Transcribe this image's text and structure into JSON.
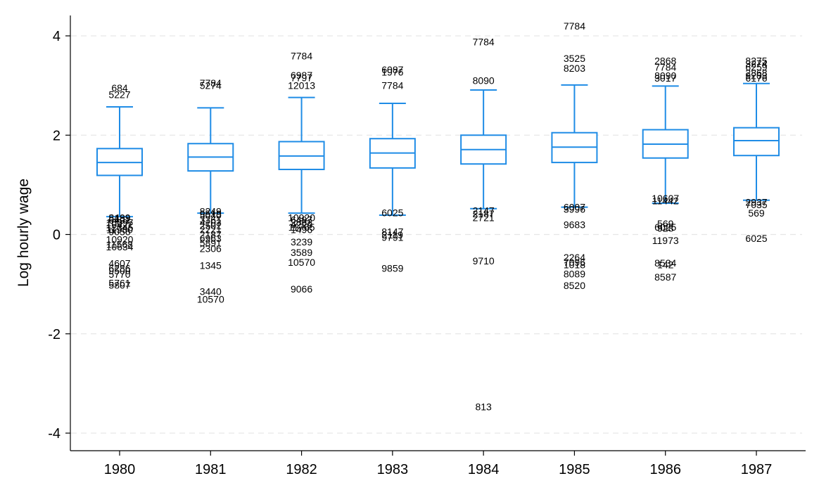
{
  "chart_data": {
    "type": "box",
    "title": "",
    "xlabel": "",
    "ylabel": "Log hourly wage",
    "ylim": [
      -4.5,
      4.5
    ],
    "yticks": [
      {
        "value": 4,
        "label": "4"
      },
      {
        "value": 2,
        "label": "2"
      },
      {
        "value": 0,
        "label": "0"
      },
      {
        "value": -2,
        "label": "-2"
      },
      {
        "value": -4,
        "label": "-4"
      }
    ],
    "grid": true,
    "colors": {
      "box": "#1f8ce6",
      "grid": "#e6e6e6",
      "axis": "#000000"
    },
    "categories": [
      "1980",
      "1981",
      "1982",
      "1983",
      "1984",
      "1985",
      "1986",
      "1987"
    ],
    "boxes": [
      {
        "year": "1980",
        "whisker_low": 0.36,
        "q1": 1.19,
        "median": 1.45,
        "q3": 1.73,
        "whisker_high": 2.57,
        "outliers": [
          {
            "value": 2.95,
            "label": "684"
          },
          {
            "value": 2.82,
            "label": "5227"
          },
          {
            "value": 0.34,
            "label": "8499"
          },
          {
            "value": 0.33,
            "label": "5189"
          },
          {
            "value": 0.29,
            "label": "6401"
          },
          {
            "value": 0.24,
            "label": "10097"
          },
          {
            "value": 0.2,
            "label": "10422"
          },
          {
            "value": 0.14,
            "label": "12345"
          },
          {
            "value": 0.1,
            "label": "11580"
          },
          {
            "value": 0.06,
            "label": "9056"
          },
          {
            "value": -0.1,
            "label": "10920"
          },
          {
            "value": -0.2,
            "label": "11568"
          },
          {
            "value": -0.25,
            "label": "10634"
          },
          {
            "value": -0.58,
            "label": "4607"
          },
          {
            "value": -0.68,
            "label": "6286"
          },
          {
            "value": -0.73,
            "label": "9500"
          },
          {
            "value": -0.8,
            "label": "5770"
          },
          {
            "value": -0.98,
            "label": "5761"
          },
          {
            "value": -1.02,
            "label": "5807"
          }
        ]
      },
      {
        "year": "1981",
        "whisker_low": 0.43,
        "q1": 1.28,
        "median": 1.56,
        "q3": 1.83,
        "whisker_high": 2.55,
        "outliers": [
          {
            "value": 3.05,
            "label": "7784"
          },
          {
            "value": 3.0,
            "label": "5274"
          },
          {
            "value": 0.47,
            "label": "8249"
          },
          {
            "value": 0.42,
            "label": "9519"
          },
          {
            "value": 0.39,
            "label": "5040"
          },
          {
            "value": 0.3,
            "label": "3361"
          },
          {
            "value": 0.24,
            "label": "4103"
          },
          {
            "value": 0.18,
            "label": "2501"
          },
          {
            "value": 0.1,
            "label": "2221"
          },
          {
            "value": 0.0,
            "label": "2187"
          },
          {
            "value": -0.08,
            "label": "6963"
          },
          {
            "value": -0.17,
            "label": "5891"
          },
          {
            "value": -0.28,
            "label": "2306"
          },
          {
            "value": -0.62,
            "label": "1345"
          },
          {
            "value": -1.15,
            "label": "3440"
          },
          {
            "value": -1.3,
            "label": "10570"
          }
        ]
      },
      {
        "year": "1982",
        "whisker_low": 0.43,
        "q1": 1.31,
        "median": 1.58,
        "q3": 1.87,
        "whisker_high": 2.76,
        "outliers": [
          {
            "value": 3.6,
            "label": "7784"
          },
          {
            "value": 3.21,
            "label": "6987"
          },
          {
            "value": 3.16,
            "label": "7797"
          },
          {
            "value": 3.0,
            "label": "12013"
          },
          {
            "value": 0.34,
            "label": "10920"
          },
          {
            "value": 0.3,
            "label": "6497"
          },
          {
            "value": 0.25,
            "label": "2862"
          },
          {
            "value": 0.2,
            "label": "4220"
          },
          {
            "value": 0.15,
            "label": "11765"
          },
          {
            "value": 0.1,
            "label": "1496"
          },
          {
            "value": -0.15,
            "label": "3239"
          },
          {
            "value": -0.36,
            "label": "3589"
          },
          {
            "value": -0.56,
            "label": "10570"
          },
          {
            "value": -1.1,
            "label": "9066"
          }
        ]
      },
      {
        "year": "1983",
        "whisker_low": 0.39,
        "q1": 1.34,
        "median": 1.64,
        "q3": 1.93,
        "whisker_high": 2.64,
        "outliers": [
          {
            "value": 3.32,
            "label": "6087"
          },
          {
            "value": 3.27,
            "label": "1976"
          },
          {
            "value": 3.0,
            "label": "7784"
          },
          {
            "value": 0.44,
            "label": "6025"
          },
          {
            "value": 0.06,
            "label": "8147"
          },
          {
            "value": -0.01,
            "label": "2119"
          },
          {
            "value": -0.06,
            "label": "9791"
          },
          {
            "value": -0.68,
            "label": "9859"
          }
        ]
      },
      {
        "year": "1984",
        "whisker_low": 0.52,
        "q1": 1.42,
        "median": 1.71,
        "q3": 2.0,
        "whisker_high": 2.91,
        "outliers": [
          {
            "value": 3.88,
            "label": "7784"
          },
          {
            "value": 3.1,
            "label": "8090"
          },
          {
            "value": 0.48,
            "label": "2147"
          },
          {
            "value": 0.42,
            "label": "2187"
          },
          {
            "value": 0.34,
            "label": "2721"
          },
          {
            "value": -0.53,
            "label": "9710"
          },
          {
            "value": -3.47,
            "label": "813"
          }
        ]
      },
      {
        "year": "1985",
        "whisker_low": 0.55,
        "q1": 1.45,
        "median": 1.76,
        "q3": 2.05,
        "whisker_high": 3.01,
        "outliers": [
          {
            "value": 4.2,
            "label": "7784"
          },
          {
            "value": 3.55,
            "label": "3525"
          },
          {
            "value": 3.35,
            "label": "8203"
          },
          {
            "value": 0.55,
            "label": "6007"
          },
          {
            "value": 0.51,
            "label": "3996"
          },
          {
            "value": 0.2,
            "label": "9683"
          },
          {
            "value": -0.46,
            "label": "2264"
          },
          {
            "value": -0.56,
            "label": "7096"
          },
          {
            "value": -0.61,
            "label": "1018"
          },
          {
            "value": -0.79,
            "label": "8089"
          },
          {
            "value": -1.03,
            "label": "8520"
          }
        ]
      },
      {
        "year": "1986",
        "whisker_low": 0.63,
        "q1": 1.54,
        "median": 1.82,
        "q3": 2.11,
        "whisker_high": 2.99,
        "outliers": [
          {
            "value": 3.5,
            "label": "2868"
          },
          {
            "value": 3.37,
            "label": "7784"
          },
          {
            "value": 3.2,
            "label": "8090"
          },
          {
            "value": 3.15,
            "label": "3017"
          },
          {
            "value": 0.73,
            "label": "10607"
          },
          {
            "value": 0.68,
            "label": "11442"
          },
          {
            "value": 0.22,
            "label": "569"
          },
          {
            "value": 0.15,
            "label": "6025"
          },
          {
            "value": 0.13,
            "label": "928"
          },
          {
            "value": -0.12,
            "label": "11973"
          },
          {
            "value": -0.57,
            "label": "8534"
          },
          {
            "value": -0.61,
            "label": "142"
          },
          {
            "value": -0.86,
            "label": "8587"
          }
        ]
      },
      {
        "year": "1987",
        "whisker_low": 0.69,
        "q1": 1.59,
        "median": 1.89,
        "q3": 2.15,
        "whisker_high": 3.04,
        "outliers": [
          {
            "value": 3.5,
            "label": "8275"
          },
          {
            "value": 3.44,
            "label": "3274"
          },
          {
            "value": 3.37,
            "label": "6259"
          },
          {
            "value": 3.26,
            "label": "2868"
          },
          {
            "value": 3.2,
            "label": "9203"
          },
          {
            "value": 3.15,
            "label": "6176"
          },
          {
            "value": 0.65,
            "label": "2937"
          },
          {
            "value": 0.6,
            "label": "7035"
          },
          {
            "value": 0.43,
            "label": "569"
          },
          {
            "value": -0.08,
            "label": "6025"
          }
        ]
      }
    ]
  }
}
